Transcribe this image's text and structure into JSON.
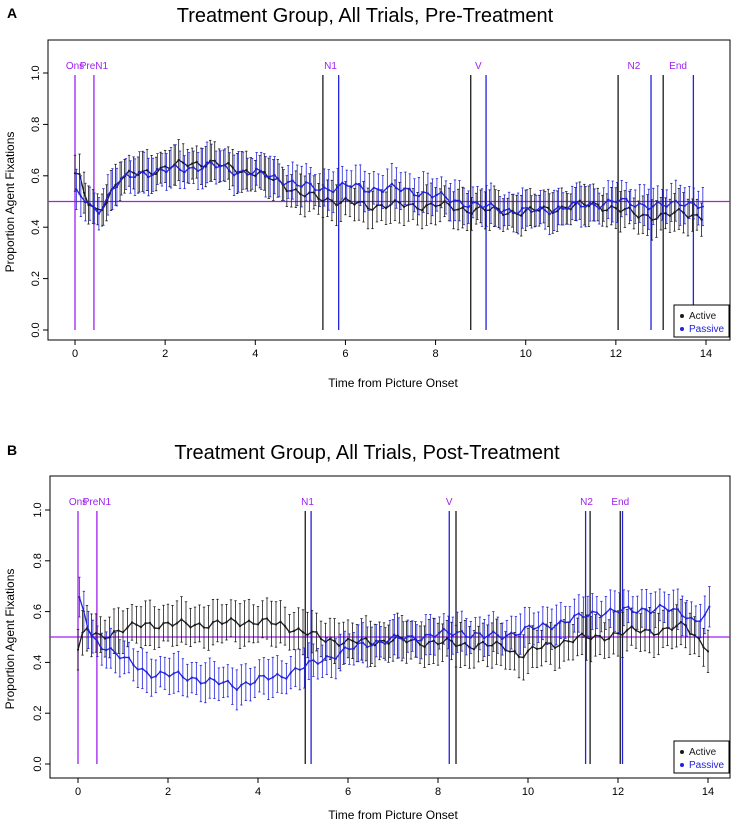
{
  "colors": {
    "active": "#1a1a1a",
    "passive": "#2222dd",
    "marker": "#a020f0",
    "axis": "#000000"
  },
  "chart_data": [
    {
      "type": "line",
      "panel_label": "A",
      "title": "Treatment Group, All Trials, Pre-Treatment",
      "xlabel": "Time from Picture Onset",
      "ylabel": "Proportion Agent Fixations",
      "xlim": [
        0,
        14
      ],
      "ylim": [
        0,
        1.0
      ],
      "x_ticks": [
        0,
        2,
        4,
        6,
        8,
        10,
        12,
        14
      ],
      "y_ticks": [
        0.0,
        0.2,
        0.4,
        0.6,
        0.8,
        1.0
      ],
      "y_tick_labels": [
        "0.0",
        "0.2",
        "0.4",
        "0.6",
        "0.8",
        "1.0"
      ],
      "reference_line": 0.5,
      "legend": {
        "position": "bottom-right",
        "entries": [
          "Active",
          "Passive"
        ]
      },
      "markers": [
        {
          "label": "Ons",
          "x": 0.0,
          "color": "marker"
        },
        {
          "label": "PreN1",
          "x": 0.42,
          "color": "marker"
        },
        {
          "label": "N1",
          "x": 5.5,
          "color": "active"
        },
        {
          "label": "N1",
          "x": 5.85,
          "color": "passive"
        },
        {
          "label": "V",
          "x": 8.78,
          "color": "active"
        },
        {
          "label": "V",
          "x": 9.12,
          "color": "passive"
        },
        {
          "label": "N2",
          "x": 12.05,
          "color": "active"
        },
        {
          "label": "N2",
          "x": 12.78,
          "color": "passive"
        },
        {
          "label": "End",
          "x": 13.05,
          "color": "active"
        },
        {
          "label": "End",
          "x": 13.72,
          "color": "passive"
        }
      ],
      "marker_labels": [
        {
          "text": "Ons",
          "x": 0.0
        },
        {
          "text": "PreN1",
          "x": 0.42
        },
        {
          "text": "N1",
          "x": 5.67
        },
        {
          "text": "V",
          "x": 8.95
        },
        {
          "text": "N2",
          "x": 12.4
        },
        {
          "text": "End",
          "x": 13.38
        }
      ],
      "series": [
        {
          "name": "Active",
          "color": "active",
          "err": 0.07,
          "points": [
            [
              0,
              0.61
            ],
            [
              0.1,
              0.59
            ],
            [
              0.2,
              0.53
            ],
            [
              0.3,
              0.49
            ],
            [
              0.4,
              0.47
            ],
            [
              0.5,
              0.46
            ],
            [
              0.6,
              0.48
            ],
            [
              0.8,
              0.54
            ],
            [
              1.0,
              0.59
            ],
            [
              1.4,
              0.61
            ],
            [
              2.0,
              0.63
            ],
            [
              2.5,
              0.65
            ],
            [
              3.0,
              0.65
            ],
            [
              3.5,
              0.63
            ],
            [
              4.0,
              0.61
            ],
            [
              4.5,
              0.58
            ],
            [
              5.0,
              0.53
            ],
            [
              5.5,
              0.51
            ],
            [
              6.0,
              0.5
            ],
            [
              6.5,
              0.48
            ],
            [
              7.0,
              0.49
            ],
            [
              7.5,
              0.48
            ],
            [
              8.0,
              0.49
            ],
            [
              8.5,
              0.47
            ],
            [
              9.0,
              0.47
            ],
            [
              9.5,
              0.46
            ],
            [
              10.0,
              0.46
            ],
            [
              10.5,
              0.47
            ],
            [
              11.0,
              0.48
            ],
            [
              11.5,
              0.49
            ],
            [
              12.0,
              0.47
            ],
            [
              12.5,
              0.45
            ],
            [
              13.0,
              0.44
            ],
            [
              13.5,
              0.46
            ],
            [
              13.9,
              0.44
            ]
          ]
        },
        {
          "name": "Passive",
          "color": "passive",
          "err": 0.07,
          "points": [
            [
              0,
              0.53
            ],
            [
              0.1,
              0.52
            ],
            [
              0.2,
              0.5
            ],
            [
              0.3,
              0.48
            ],
            [
              0.4,
              0.47
            ],
            [
              0.5,
              0.47
            ],
            [
              0.6,
              0.49
            ],
            [
              0.8,
              0.55
            ],
            [
              1.0,
              0.58
            ],
            [
              1.4,
              0.61
            ],
            [
              2.0,
              0.62
            ],
            [
              2.5,
              0.63
            ],
            [
              3.0,
              0.64
            ],
            [
              3.5,
              0.62
            ],
            [
              4.0,
              0.61
            ],
            [
              4.5,
              0.59
            ],
            [
              5.0,
              0.56
            ],
            [
              5.5,
              0.55
            ],
            [
              6.0,
              0.56
            ],
            [
              6.5,
              0.55
            ],
            [
              7.0,
              0.55
            ],
            [
              7.5,
              0.54
            ],
            [
              8.0,
              0.52
            ],
            [
              8.5,
              0.5
            ],
            [
              9.0,
              0.48
            ],
            [
              9.5,
              0.47
            ],
            [
              10.0,
              0.46
            ],
            [
              10.5,
              0.47
            ],
            [
              11.0,
              0.48
            ],
            [
              11.5,
              0.49
            ],
            [
              12.0,
              0.5
            ],
            [
              12.5,
              0.49
            ],
            [
              13.0,
              0.48
            ],
            [
              13.5,
              0.5
            ],
            [
              13.9,
              0.48
            ]
          ]
        }
      ]
    },
    {
      "type": "line",
      "panel_label": "B",
      "title": "Treatment Group, All Trials, Post-Treatment",
      "xlabel": "Time from Picture Onset",
      "ylabel": "Proportion Agent Fixations",
      "xlim": [
        0,
        14
      ],
      "ylim": [
        0,
        1.0
      ],
      "x_ticks": [
        0,
        2,
        4,
        6,
        8,
        10,
        12,
        14
      ],
      "y_ticks": [
        0.0,
        0.2,
        0.4,
        0.6,
        0.8,
        1.0
      ],
      "y_tick_labels": [
        "0.0",
        "0.2",
        "0.4",
        "0.6",
        "0.8",
        "1.0"
      ],
      "reference_line": 0.5,
      "legend": {
        "position": "bottom-right",
        "entries": [
          "Active",
          "Passive"
        ]
      },
      "markers": [
        {
          "label": "Ons",
          "x": 0.0,
          "color": "marker"
        },
        {
          "label": "PreN1",
          "x": 0.42,
          "color": "marker"
        },
        {
          "label": "N1",
          "x": 5.05,
          "color": "active"
        },
        {
          "label": "N1",
          "x": 5.18,
          "color": "passive"
        },
        {
          "label": "V",
          "x": 8.25,
          "color": "passive"
        },
        {
          "label": "V",
          "x": 8.4,
          "color": "active"
        },
        {
          "label": "N2",
          "x": 11.28,
          "color": "passive"
        },
        {
          "label": "N2",
          "x": 11.38,
          "color": "active"
        },
        {
          "label": "End",
          "x": 12.05,
          "color": "active"
        },
        {
          "label": "End",
          "x": 12.1,
          "color": "passive"
        }
      ],
      "marker_labels": [
        {
          "text": "Ons",
          "x": 0.0
        },
        {
          "text": "PreN1",
          "x": 0.42
        },
        {
          "text": "N1",
          "x": 5.1
        },
        {
          "text": "V",
          "x": 8.25
        },
        {
          "text": "N2",
          "x": 11.3
        },
        {
          "text": "End",
          "x": 12.05
        }
      ],
      "series": [
        {
          "name": "Active",
          "color": "active",
          "err": 0.08,
          "points": [
            [
              0,
              0.45
            ],
            [
              0.1,
              0.5
            ],
            [
              0.2,
              0.53
            ],
            [
              0.3,
              0.51
            ],
            [
              0.5,
              0.5
            ],
            [
              0.8,
              0.52
            ],
            [
              1.0,
              0.53
            ],
            [
              1.5,
              0.55
            ],
            [
              2.0,
              0.55
            ],
            [
              2.5,
              0.55
            ],
            [
              3.0,
              0.55
            ],
            [
              3.5,
              0.56
            ],
            [
              4.0,
              0.56
            ],
            [
              4.5,
              0.55
            ],
            [
              5.0,
              0.52
            ],
            [
              5.5,
              0.49
            ],
            [
              6.0,
              0.48
            ],
            [
              6.5,
              0.48
            ],
            [
              7.0,
              0.49
            ],
            [
              7.5,
              0.48
            ],
            [
              8.0,
              0.48
            ],
            [
              8.5,
              0.47
            ],
            [
              9.0,
              0.47
            ],
            [
              9.5,
              0.46
            ],
            [
              9.8,
              0.43
            ],
            [
              10.0,
              0.44
            ],
            [
              10.5,
              0.47
            ],
            [
              11.0,
              0.49
            ],
            [
              11.5,
              0.5
            ],
            [
              12.0,
              0.51
            ],
            [
              12.5,
              0.53
            ],
            [
              13.0,
              0.52
            ],
            [
              13.5,
              0.55
            ],
            [
              13.7,
              0.51
            ],
            [
              14.0,
              0.45
            ]
          ]
        },
        {
          "name": "Passive",
          "color": "passive",
          "err": 0.07,
          "points": [
            [
              0,
              0.64
            ],
            [
              0.1,
              0.6
            ],
            [
              0.2,
              0.53
            ],
            [
              0.3,
              0.49
            ],
            [
              0.5,
              0.47
            ],
            [
              0.8,
              0.44
            ],
            [
              1.0,
              0.41
            ],
            [
              1.5,
              0.36
            ],
            [
              2.0,
              0.35
            ],
            [
              2.5,
              0.34
            ],
            [
              3.0,
              0.32
            ],
            [
              3.5,
              0.31
            ],
            [
              4.0,
              0.33
            ],
            [
              4.5,
              0.35
            ],
            [
              5.0,
              0.38
            ],
            [
              5.5,
              0.42
            ],
            [
              6.0,
              0.45
            ],
            [
              6.5,
              0.48
            ],
            [
              7.0,
              0.49
            ],
            [
              7.5,
              0.5
            ],
            [
              8.0,
              0.51
            ],
            [
              8.5,
              0.52
            ],
            [
              9.0,
              0.5
            ],
            [
              9.5,
              0.51
            ],
            [
              10.0,
              0.53
            ],
            [
              10.5,
              0.55
            ],
            [
              11.0,
              0.57
            ],
            [
              11.5,
              0.6
            ],
            [
              12.0,
              0.6
            ],
            [
              12.5,
              0.61
            ],
            [
              13.0,
              0.61
            ],
            [
              13.5,
              0.59
            ],
            [
              13.7,
              0.56
            ],
            [
              14.0,
              0.6
            ]
          ]
        }
      ]
    }
  ]
}
